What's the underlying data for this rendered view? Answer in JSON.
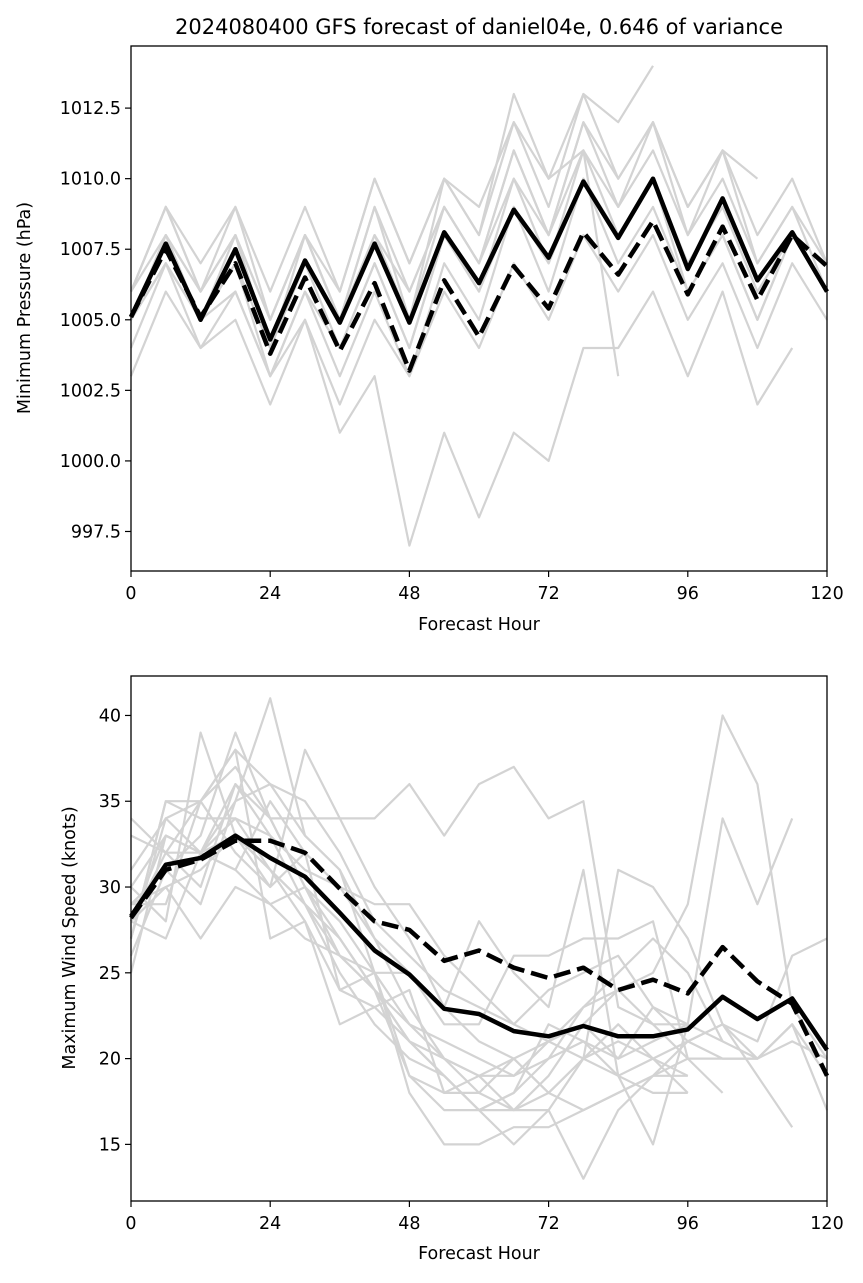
{
  "chart_data": [
    {
      "type": "line",
      "title": "2024080400 GFS forecast of daniel04e, 0.646 of variance",
      "xlabel": "Forecast Hour",
      "ylabel": "Minimum Pressure (hPa)",
      "xlim": [
        0,
        120
      ],
      "ylim": [
        996.1,
        1014.7
      ],
      "xticks": [
        0,
        24,
        48,
        72,
        96,
        120
      ],
      "xtick_labels": [
        "0",
        "24",
        "48",
        "72",
        "96",
        "120"
      ],
      "yticks": [
        997.5,
        1000.0,
        1002.5,
        1005.0,
        1007.5,
        1010.0,
        1012.5
      ],
      "ytick_labels": [
        "997.5",
        "1000.0",
        "1002.5",
        "1005.0",
        "1007.5",
        "1010.0",
        "1012.5"
      ],
      "grid": false,
      "x": [
        0,
        6,
        12,
        18,
        24,
        30,
        36,
        42,
        48,
        54,
        60,
        66,
        72,
        78,
        84,
        90,
        96,
        102,
        108,
        114,
        120
      ],
      "ensemble_color": "#d3d3d3",
      "ensemble": [
        [
          1005,
          1008,
          1005,
          1007,
          1004,
          1007,
          1004,
          1007,
          1004,
          1008,
          1006,
          1009,
          1007,
          1010,
          1008,
          1010,
          1007,
          1009,
          1006,
          1008,
          1006
        ],
        [
          1006,
          1009,
          1006,
          1009,
          1005,
          1008,
          1005,
          1008,
          1005,
          1009,
          1007,
          1010,
          1008,
          1011,
          1009,
          1011,
          1008,
          1010,
          1007,
          1009,
          1007
        ],
        [
          1006,
          1009,
          1007,
          1009,
          1006,
          1009,
          1006,
          1010,
          1007,
          1010,
          1008,
          1012,
          1009,
          1013,
          1010,
          1012,
          1009,
          1011,
          1008,
          1010,
          1007
        ],
        [
          1005,
          1008,
          1005,
          1008,
          1004,
          1007,
          1005,
          1009,
          1005,
          1010,
          1008,
          1013,
          1010,
          1013,
          1012,
          1014
        ],
        [
          1005,
          1007,
          1005,
          1006,
          1003,
          1006,
          1003,
          1006,
          1003,
          1007,
          1005,
          1009,
          1006,
          1010,
          1007,
          1009,
          1006,
          1008,
          1005,
          1008,
          1006
        ],
        [
          1004,
          1007,
          1004,
          1006,
          1003,
          1005,
          1002,
          1005,
          1003,
          1006,
          1004,
          1007,
          1005,
          1008,
          1006,
          1008,
          1005,
          1007,
          1004,
          1007,
          1005
        ],
        [
          1003,
          1006,
          1004,
          1005,
          1002,
          1005,
          1001,
          1003,
          997,
          1001,
          998,
          1001,
          1000,
          1004,
          1004,
          1006,
          1003,
          1006,
          1002,
          1004
        ],
        [
          1005,
          1008,
          1006,
          1008,
          1004,
          1008,
          1005,
          1009,
          1006,
          1009,
          1007,
          1011,
          1008,
          1012,
          1009,
          1012,
          1008,
          1011,
          1007,
          1009,
          1006
        ],
        [
          1005,
          1007,
          1005,
          1007,
          1003,
          1006,
          1004,
          1007,
          1004,
          1008,
          1006,
          1010,
          1007,
          1011,
          1003
        ],
        [
          1006,
          1008,
          1006,
          1008,
          1005,
          1008,
          1005,
          1008,
          1006,
          1009,
          1007,
          1011,
          1008,
          1012,
          1010,
          1012,
          1009,
          1011,
          1010
        ],
        [
          1006,
          1009,
          1006,
          1008,
          1005,
          1008,
          1006,
          1010,
          1007,
          1010,
          1009,
          1012,
          1010,
          1011,
          1008,
          1010,
          1006,
          1008,
          1005,
          1008,
          1006
        ]
      ],
      "series": [
        {
          "style": "solid",
          "values": [
            1005.1,
            1007.7,
            1005.0,
            1007.5,
            1004.3,
            1007.1,
            1004.9,
            1007.7,
            1004.9,
            1008.1,
            1006.3,
            1008.9,
            1007.2,
            1009.9,
            1007.9,
            1010.0,
            1006.8,
            1009.3,
            1006.4,
            1008.1,
            1006.0
          ]
        },
        {
          "style": "dashed",
          "values": [
            1005.1,
            1007.5,
            1005.1,
            1007.0,
            1003.8,
            1006.5,
            1003.9,
            1006.3,
            1003.2,
            1006.4,
            1004.4,
            1006.9,
            1005.4,
            1008.1,
            1006.6,
            1008.5,
            1005.9,
            1008.3,
            1005.7,
            1008.0,
            1006.9
          ]
        }
      ]
    },
    {
      "type": "line",
      "title": "",
      "xlabel": "Forecast Hour",
      "ylabel": "Maximum Wind Speed (knots)",
      "xlim": [
        0,
        120
      ],
      "ylim": [
        11.7,
        42.3
      ],
      "xticks": [
        0,
        24,
        48,
        72,
        96,
        120
      ],
      "xtick_labels": [
        "0",
        "24",
        "48",
        "72",
        "96",
        "120"
      ],
      "yticks": [
        15,
        20,
        25,
        30,
        35,
        40
      ],
      "ytick_labels": [
        "15",
        "20",
        "25",
        "30",
        "35",
        "40"
      ],
      "grid": false,
      "x": [
        0,
        6,
        12,
        18,
        24,
        30,
        36,
        42,
        48,
        54,
        60,
        66,
        72,
        78,
        84,
        90,
        96,
        102,
        108,
        114,
        120
      ],
      "ensemble_color": "#d3d3d3",
      "ensemble": [
        [
          25,
          33,
          32,
          35,
          41,
          33,
          31,
          27,
          23,
          20,
          19,
          20,
          21,
          22,
          24,
          25,
          29,
          40,
          36,
          23,
          20
        ],
        [
          28,
          32,
          35,
          37,
          34,
          30,
          28,
          25,
          22,
          21,
          20,
          19,
          20,
          21,
          20,
          21,
          22,
          34,
          29,
          34
        ],
        [
          29,
          30,
          31,
          33,
          31,
          29,
          27,
          24,
          21,
          19,
          17,
          17,
          18,
          20,
          31,
          30,
          27,
          22,
          19,
          16
        ],
        [
          27,
          35,
          35,
          38,
          36,
          35,
          32,
          28,
          26,
          24,
          23,
          22,
          21,
          20,
          19,
          20,
          21,
          22,
          21,
          26,
          27
        ],
        [
          30,
          28,
          39,
          33,
          30,
          38,
          34,
          30,
          27,
          23,
          21,
          20,
          18,
          17,
          18,
          19,
          21,
          20,
          20,
          22,
          19
        ],
        [
          31,
          34,
          32,
          36,
          34,
          34,
          34,
          34,
          36,
          33,
          36,
          37,
          34,
          35,
          23,
          22,
          20,
          20,
          20
        ],
        [
          27,
          35,
          34,
          34,
          33,
          31,
          30,
          29,
          29,
          26,
          24,
          22,
          24,
          25,
          26,
          23,
          22,
          21,
          20,
          21,
          20
        ],
        [
          28,
          30,
          27,
          30,
          29,
          27,
          26,
          24,
          22,
          20,
          18,
          17,
          19,
          22,
          20,
          23,
          21,
          22,
          20,
          22,
          17
        ],
        [
          33,
          32,
          30,
          36,
          33,
          29,
          25,
          22,
          20,
          19,
          17,
          18,
          20,
          23,
          25,
          27,
          25,
          21
        ],
        [
          29,
          31,
          33,
          39,
          34,
          30,
          27,
          24,
          21,
          19,
          17,
          15,
          17,
          20,
          22,
          20,
          18
        ],
        [
          30,
          33,
          32,
          31,
          35,
          32,
          30,
          27,
          25,
          23,
          28,
          25,
          23,
          31,
          19,
          15,
          22
        ],
        [
          27,
          34,
          35,
          38,
          27,
          28,
          22,
          23,
          24,
          18,
          19,
          17,
          17,
          13,
          17,
          19,
          20,
          18
        ],
        [
          26,
          31,
          29,
          35,
          36,
          33,
          31,
          25,
          18,
          15,
          15,
          16,
          16,
          17,
          18,
          19,
          19
        ],
        [
          34,
          32,
          32,
          33,
          31,
          29,
          26,
          24,
          19,
          17,
          17,
          18,
          22,
          21,
          19,
          18,
          18
        ],
        [
          28,
          27,
          32,
          34,
          31,
          28,
          24,
          23,
          21,
          20,
          19,
          19,
          21,
          23,
          24,
          22,
          22
        ],
        [
          28,
          33,
          32,
          31,
          29,
          30,
          26,
          25,
          25,
          22,
          22,
          26,
          26,
          27,
          27,
          28,
          20
        ],
        [
          29,
          29,
          35,
          32,
          30,
          32,
          24,
          25,
          19,
          18,
          18,
          20,
          18,
          20,
          21,
          20,
          19
        ]
      ],
      "series": [
        {
          "style": "solid",
          "values": [
            28.3,
            31.3,
            31.7,
            33.0,
            31.7,
            30.6,
            28.5,
            26.3,
            24.9,
            22.9,
            22.6,
            21.6,
            21.3,
            21.9,
            21.3,
            21.3,
            21.7,
            23.6,
            22.3,
            23.5,
            20.5
          ]
        },
        {
          "style": "dashed",
          "values": [
            28.2,
            31.0,
            31.6,
            32.7,
            32.7,
            32.0,
            29.9,
            28.0,
            27.5,
            25.7,
            26.3,
            25.3,
            24.7,
            25.3,
            24.0,
            24.6,
            23.8,
            26.5,
            24.5,
            23.2,
            19.0
          ]
        }
      ]
    }
  ]
}
